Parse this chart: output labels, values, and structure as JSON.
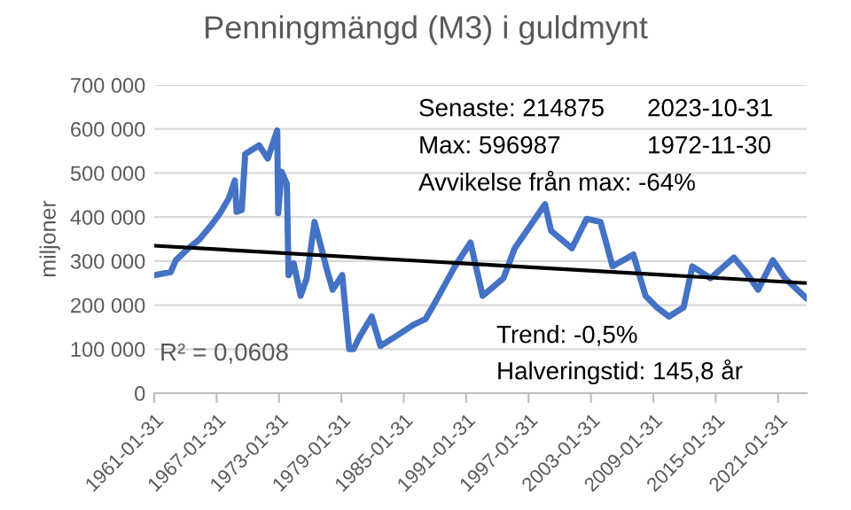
{
  "chart_data": {
    "type": "line",
    "title": "Penningmängd (M3) i guldmynt",
    "ylabel": "miljoner",
    "series": [
      {
        "color": "#4472c4",
        "x": [
          "1961-01-31",
          "1962-09",
          "1963-03",
          "1964-05",
          "1965-06",
          "1966-08",
          "1967-06",
          "1968-04",
          "1968-11",
          "1969-01",
          "1969-07",
          "1969-11",
          "1971-03",
          "1972-01",
          "1972-11-30",
          "1973-01",
          "1973-05",
          "1973-11",
          "1974-01",
          "1974-07",
          "1975-03",
          "1975-10",
          "1976-07",
          "1977-03",
          "1977-10",
          "1978-04",
          "1979-03",
          "1979-11",
          "1980-04",
          "1980-11",
          "1982-01",
          "1982-11",
          "1984-04",
          "1986-01",
          "1987-03",
          "1987-11",
          "1990-01",
          "1991-07",
          "1992-09",
          "1994-09",
          "1995-10",
          "1998-09",
          "1999-04",
          "2001-04",
          "2002-09",
          "2004-01",
          "2005-03",
          "2007-03",
          "2008-05",
          "2009-06",
          "2010-08",
          "2012-01",
          "2012-11",
          "2014-08",
          "2016-11",
          "2018-01",
          "2019-03",
          "2020-08",
          "2021-10",
          "2023-10-31"
        ],
        "values": [
          268000,
          275000,
          302000,
          328000,
          349000,
          382000,
          409000,
          442000,
          483000,
          412000,
          416000,
          543000,
          563000,
          533000,
          597000,
          409000,
          503000,
          476000,
          268000,
          295000,
          221000,
          261000,
          389000,
          329000,
          275000,
          235000,
          268000,
          100000,
          100000,
          128000,
          174000,
          107000,
          128000,
          155000,
          168000,
          195000,
          288000,
          342000,
          221000,
          261000,
          329000,
          429000,
          369000,
          329000,
          396000,
          389000,
          288000,
          315000,
          221000,
          195000,
          174000,
          195000,
          288000,
          261000,
          308000,
          275000,
          235000,
          302000,
          261000,
          215000
        ]
      },
      {
        "color": "#000000",
        "x": [
          "1961-01-31",
          "2023-10-31"
        ],
        "values": [
          335000,
          250000
        ]
      }
    ],
    "xlim": [
      "1961-01-31",
      "2023-10-31"
    ],
    "xticks": [
      {
        "value": "1961-01-31",
        "label": "1961-01-31"
      },
      {
        "value": "1967-01-31",
        "label": "1967-01-31"
      },
      {
        "value": "1973-01-31",
        "label": "1973-01-31"
      },
      {
        "value": "1979-01-31",
        "label": "1979-01-31"
      },
      {
        "value": "1985-01-31",
        "label": "1985-01-31"
      },
      {
        "value": "1991-01-31",
        "label": "1991-01-31"
      },
      {
        "value": "1997-01-31",
        "label": "1997-01-31"
      },
      {
        "value": "2003-01-31",
        "label": "2003-01-31"
      },
      {
        "value": "2009-01-31",
        "label": "2009-01-31"
      },
      {
        "value": "2015-01-31",
        "label": "2015-01-31"
      },
      {
        "value": "2021-01-31",
        "label": "2021-01-31"
      }
    ],
    "ylim": [
      0,
      700000
    ],
    "yticks": [
      0,
      {
        "value": 100000,
        "label": "100 000"
      },
      {
        "value": 200000,
        "label": "200 000"
      },
      {
        "value": 300000,
        "label": "300 000"
      },
      {
        "value": 400000,
        "label": "400 000"
      },
      {
        "value": 500000,
        "label": "500 000"
      },
      {
        "value": 600000,
        "label": "600 000"
      },
      {
        "value": 700000,
        "label": "700 000"
      }
    ],
    "grid": "y",
    "annotations": [
      "Senaste: 214875",
      "2023-10-31",
      "Max: 596987",
      "1972-11-30",
      "Avvikelse från max: -64%",
      "R² = 0,0608",
      "Trend: -0,5%",
      "Halveringstid: 145,8 år"
    ]
  }
}
